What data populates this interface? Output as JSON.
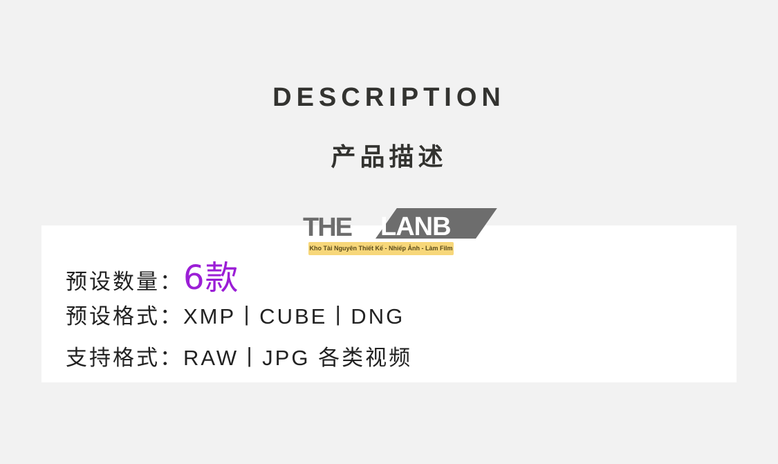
{
  "header": {
    "title": "DESCRIPTION",
    "subtitle": "产品描述"
  },
  "logo": {
    "brand_left": "THE",
    "brand_right": "LANB",
    "tagline": "Kho Tài Nguyên Thiết Kế - Nhiếp Ảnh - Làm Film"
  },
  "details": {
    "count_label": "预设数量：",
    "count_value": "6款",
    "format_label": "预设格式：",
    "format_value": "XMP丨CUBE丨DNG",
    "support_label": "支持格式：",
    "support_value": "RAW丨JPG 各类视频"
  },
  "colors": {
    "accent": "#9b1ed6",
    "background": "#f2f2f2",
    "text": "#333330"
  }
}
